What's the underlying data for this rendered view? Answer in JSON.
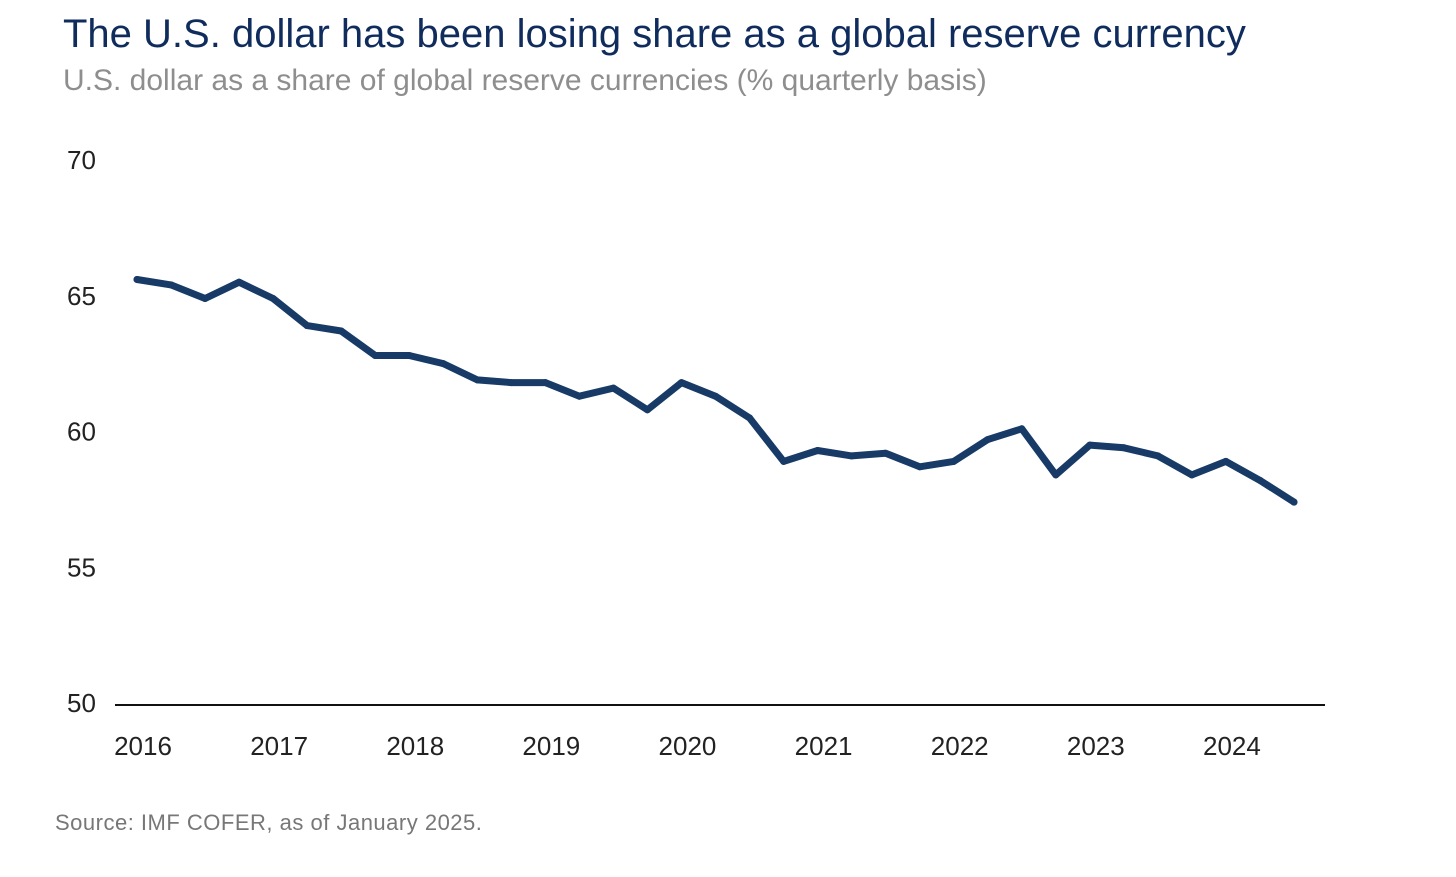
{
  "header": {
    "title": "The U.S. dollar has been losing share as a global reserve currency",
    "subtitle": "U.S. dollar as a share of global reserve currencies (% quarterly basis)"
  },
  "footer": {
    "source": "Source: IMF COFER, as of January 2025."
  },
  "colors": {
    "line": "#173a66",
    "axis": "#111111",
    "title": "#0f2c5c",
    "subtitle": "#8e8e8e"
  },
  "chart_data": {
    "type": "line",
    "title": "The U.S. dollar has been losing share as a global reserve currency",
    "subtitle": "U.S. dollar as a share of global reserve currencies (% quarterly basis)",
    "xlabel": "",
    "ylabel": "",
    "ylim": [
      50,
      70
    ],
    "yticks": [
      50,
      55,
      60,
      65,
      70
    ],
    "xticks": [
      "2016",
      "2017",
      "2018",
      "2019",
      "2020",
      "2021",
      "2022",
      "2023",
      "2024"
    ],
    "grid": false,
    "legend": "none",
    "series": [
      {
        "x": [
          "2016 Q1",
          "2016 Q2",
          "2016 Q3",
          "2016 Q4",
          "2017 Q1",
          "2017 Q2",
          "2017 Q3",
          "2017 Q4",
          "2018 Q1",
          "2018 Q2",
          "2018 Q3",
          "2018 Q4",
          "2019 Q1",
          "2019 Q2",
          "2019 Q3",
          "2019 Q4",
          "2020 Q1",
          "2020 Q2",
          "2020 Q3",
          "2020 Q4",
          "2021 Q1",
          "2021 Q2",
          "2021 Q3",
          "2021 Q4",
          "2022 Q1",
          "2022 Q2",
          "2022 Q3",
          "2022 Q4",
          "2023 Q1",
          "2023 Q2",
          "2023 Q3",
          "2023 Q4",
          "2024 Q1",
          "2024 Q2",
          "2024 Q3"
        ],
        "values": [
          65.6,
          65.4,
          64.9,
          65.5,
          64.9,
          63.9,
          63.7,
          62.8,
          62.8,
          62.5,
          61.9,
          61.8,
          61.8,
          61.3,
          61.6,
          60.8,
          61.8,
          61.3,
          60.5,
          58.9,
          59.3,
          59.1,
          59.2,
          58.7,
          58.9,
          59.7,
          60.1,
          58.4,
          59.5,
          59.4,
          59.1,
          58.4,
          58.9,
          58.2,
          57.4
        ]
      }
    ],
    "source": "Source: IMF COFER, as of January 2025."
  }
}
